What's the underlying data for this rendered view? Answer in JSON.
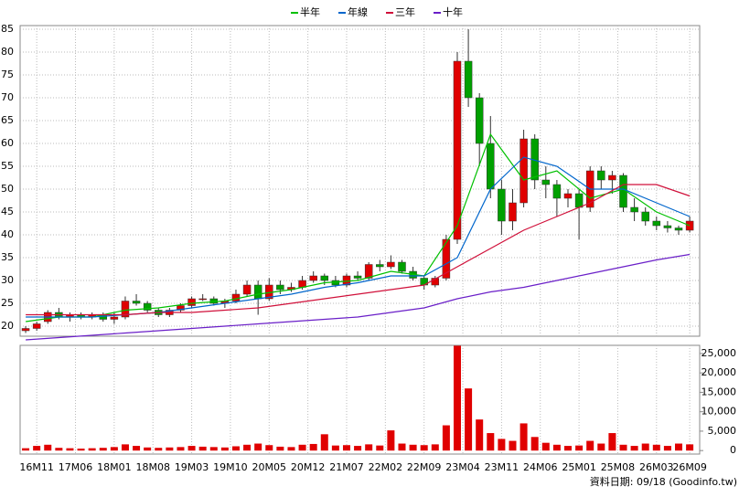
{
  "chart_data": {
    "type": "candlestick",
    "x": [
      0,
      2,
      4,
      6,
      8,
      10,
      12,
      14,
      16,
      18,
      20,
      22,
      24,
      26,
      28,
      30,
      32,
      34,
      36,
      38,
      40,
      42,
      44,
      46,
      48,
      50,
      52,
      54,
      56,
      58,
      60,
      62,
      64,
      66,
      68,
      70,
      72,
      74,
      76,
      78,
      80,
      82,
      84,
      86,
      88,
      90,
      92,
      94,
      96,
      98,
      100,
      102,
      104,
      106,
      108,
      110,
      112,
      114,
      116,
      118,
      120
    ],
    "open": [
      19,
      19.5,
      21,
      23,
      22,
      22.5,
      22,
      22.5,
      21.5,
      22,
      25.5,
      25,
      23.5,
      22.5,
      23.5,
      24.5,
      26,
      26,
      25,
      25.5,
      27,
      29,
      26,
      29,
      28,
      28.5,
      30,
      31,
      30,
      29,
      31,
      30.5,
      33.5,
      33,
      34,
      32,
      30.5,
      29,
      30.5,
      39,
      78,
      70,
      60,
      50,
      43,
      47,
      61,
      52,
      51,
      48,
      49,
      46,
      54,
      52,
      53,
      46,
      45,
      43,
      42,
      41.5,
      41
    ],
    "high": [
      20,
      21,
      23.5,
      24,
      23,
      23,
      23,
      23,
      23,
      26.5,
      27,
      25.5,
      24,
      24,
      25,
      26.5,
      27,
      26.5,
      26,
      28,
      30,
      30,
      30.5,
      30,
      29.5,
      31,
      32,
      31.5,
      31,
      31.5,
      32,
      34,
      34.5,
      35.5,
      34.5,
      33,
      31,
      31,
      40,
      80,
      85,
      71,
      66,
      52,
      50,
      63,
      62,
      55,
      52,
      50,
      50,
      55,
      55,
      54,
      53.5,
      48,
      46,
      44,
      43,
      42,
      44
    ],
    "low": [
      18.5,
      19,
      20.5,
      21.5,
      21,
      21.5,
      21.5,
      21,
      20.5,
      21.5,
      24.5,
      23,
      22,
      22,
      23,
      24,
      25.5,
      24.5,
      24,
      25,
      26.5,
      22.5,
      25.5,
      27,
      27.5,
      28,
      29.5,
      29,
      28.5,
      28.5,
      30,
      30,
      32,
      32.5,
      31.5,
      30,
      28,
      28.5,
      30,
      38,
      68,
      55,
      48,
      40,
      41,
      46,
      50,
      48,
      44,
      46,
      39,
      45,
      50,
      49,
      45,
      43,
      42,
      41,
      40.5,
      40,
      40.5
    ],
    "close": [
      19.5,
      20.5,
      23,
      22,
      22.5,
      22,
      22.5,
      21.5,
      22,
      25.5,
      25,
      23.5,
      22.5,
      23.5,
      24.5,
      26,
      26,
      25,
      25.5,
      27,
      29,
      26,
      29,
      28,
      28.5,
      30,
      31,
      30,
      29,
      31,
      30.5,
      33.5,
      33,
      34,
      32,
      30.5,
      29,
      30.5,
      39,
      78,
      70,
      60,
      50,
      43,
      47,
      61,
      52,
      51,
      48,
      49,
      46,
      54,
      52,
      53,
      46,
      45,
      43,
      42,
      41.5,
      41,
      43
    ],
    "up_color": "#e00000",
    "down_color": "#00a000",
    "xlim": [
      -1,
      121.8
    ],
    "xticks": [
      {
        "value": 2,
        "label": "16M11"
      },
      {
        "value": 9,
        "label": "17M06"
      },
      {
        "value": 16,
        "label": "18M01"
      },
      {
        "value": 23,
        "label": "18M08"
      },
      {
        "value": 30,
        "label": "19M03"
      },
      {
        "value": 37,
        "label": "19M10"
      },
      {
        "value": 44,
        "label": "20M05"
      },
      {
        "value": 51,
        "label": "20M12"
      },
      {
        "value": 58,
        "label": "21M07"
      },
      {
        "value": 65,
        "label": "22M02"
      },
      {
        "value": 72,
        "label": "22M09"
      },
      {
        "value": 79,
        "label": "23M04"
      },
      {
        "value": 86,
        "label": "23M11"
      },
      {
        "value": 93,
        "label": "24M06"
      },
      {
        "value": 100,
        "label": "25M01"
      },
      {
        "value": 107,
        "label": "25M08"
      },
      {
        "value": 114,
        "label": "26M03"
      },
      {
        "value": 120,
        "label": "26M09"
      }
    ],
    "ylim": [
      17.8,
      85.8
    ],
    "yticks": [
      20,
      25,
      30,
      35,
      40,
      45,
      50,
      55,
      60,
      65,
      70,
      75,
      80,
      85
    ],
    "grid": true,
    "series": [
      {
        "name": "半年",
        "color": "#00c000",
        "x": [
          0,
          6,
          12,
          18,
          24,
          30,
          36,
          42,
          48,
          54,
          60,
          66,
          72,
          78,
          84,
          90,
          96,
          102,
          108,
          114,
          120
        ],
        "values": [
          21,
          22,
          22,
          23.5,
          24,
          25,
          25.5,
          27,
          28,
          29.5,
          30,
          32,
          31,
          42,
          62,
          52,
          54,
          48,
          50,
          45,
          42
        ]
      },
      {
        "name": "年線",
        "color": "#0066cc",
        "x": [
          0,
          6,
          12,
          18,
          24,
          30,
          36,
          42,
          48,
          54,
          60,
          66,
          72,
          78,
          84,
          90,
          96,
          102,
          108,
          114,
          120
        ],
        "values": [
          22,
          22,
          22,
          22.5,
          23,
          24,
          25,
          26,
          27,
          28.5,
          29.5,
          31,
          31,
          35,
          50,
          57,
          55,
          50,
          50,
          47,
          44
        ]
      },
      {
        "name": "三年",
        "color": "#d0103a",
        "x": [
          0,
          6,
          12,
          18,
          24,
          30,
          36,
          42,
          48,
          54,
          60,
          66,
          72,
          78,
          84,
          90,
          96,
          102,
          108,
          114,
          120
        ],
        "values": [
          22.5,
          22.5,
          22.5,
          22.5,
          23,
          23,
          23.5,
          24,
          25,
          26,
          27,
          28,
          29,
          33,
          37,
          41,
          44,
          47,
          51,
          51,
          48.5
        ]
      },
      {
        "name": "十年",
        "color": "#6a1fc8",
        "x": [
          0,
          6,
          12,
          18,
          24,
          30,
          36,
          42,
          48,
          54,
          60,
          66,
          72,
          78,
          84,
          90,
          96,
          102,
          108,
          114,
          120
        ],
        "values": [
          17,
          17.5,
          18,
          18.5,
          19,
          19.5,
          20,
          20.5,
          21,
          21.5,
          22,
          23,
          24,
          26,
          27.5,
          28.5,
          30,
          31.5,
          33,
          34.5,
          35.7
        ]
      }
    ],
    "volume": {
      "color": "#e00000",
      "values": [
        600,
        1200,
        1500,
        700,
        600,
        500,
        600,
        700,
        900,
        1600,
        1200,
        800,
        700,
        800,
        900,
        1200,
        1000,
        900,
        800,
        1100,
        1500,
        1800,
        1400,
        1000,
        900,
        1500,
        1700,
        4200,
        1300,
        1400,
        1200,
        1600,
        1300,
        5200,
        1800,
        1500,
        1400,
        1600,
        6500,
        27000,
        16000,
        8000,
        4500,
        3000,
        2500,
        7000,
        3500,
        2000,
        1500,
        1200,
        1300,
        2500,
        1800,
        4500,
        1500,
        1200,
        1800,
        1500,
        1200,
        1800,
        1600
      ],
      "ylim": [
        -900,
        27100
      ],
      "yticks": [
        0,
        {
          "value": 5000,
          "label": "5,000"
        },
        {
          "value": 10000,
          "label": "10,000"
        },
        {
          "value": 15000,
          "label": "15,000"
        },
        {
          "value": 20000,
          "label": "20,000"
        },
        {
          "value": 25000,
          "label": "25,000"
        }
      ]
    },
    "footer": "資料日期: 09/18 (Goodinfo.tw)"
  }
}
